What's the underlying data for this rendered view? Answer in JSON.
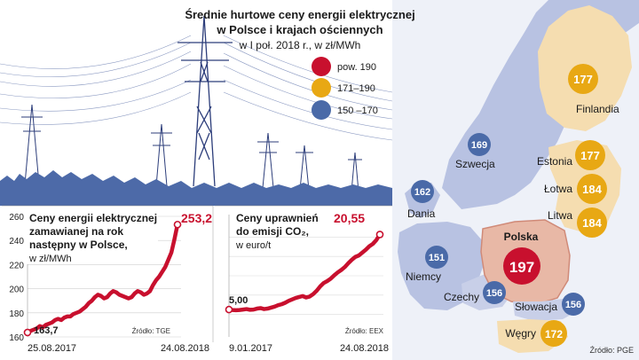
{
  "header": {
    "title_line1": "Średnie hurtowe ceny energii elektrycznej",
    "title_line2": "w Polsce i krajach ościennych",
    "subtitle": "w I poł. 2018 r., w zł/MWh"
  },
  "legend": [
    {
      "label": "pow. 190",
      "color": "#c8102e"
    },
    {
      "label": "171–190",
      "color": "#e8a814"
    },
    {
      "label": "150 –170",
      "color": "#4a6aa8"
    }
  ],
  "chart_data": [
    {
      "type": "map",
      "title": "Średnie hurtowe ceny energii elektrycznej w Polsce i krajach ościennych",
      "subtitle": "w I poł. 2018 r., w zł/MWh",
      "unit": "zł/MWh",
      "countries": [
        {
          "name": "Polska",
          "value": 197,
          "band": "pow. 190"
        },
        {
          "name": "Finlandia",
          "value": 177,
          "band": "171–190"
        },
        {
          "name": "Estonia",
          "value": 177,
          "band": "171–190"
        },
        {
          "name": "Łotwa",
          "value": 184,
          "band": "171–190"
        },
        {
          "name": "Litwa",
          "value": 184,
          "band": "171–190"
        },
        {
          "name": "Węgry",
          "value": 172,
          "band": "171–190"
        },
        {
          "name": "Szwecja",
          "value": 169,
          "band": "150 –170"
        },
        {
          "name": "Dania",
          "value": 162,
          "band": "150 –170"
        },
        {
          "name": "Niemcy",
          "value": 151,
          "band": "150 –170"
        },
        {
          "name": "Czechy",
          "value": 156,
          "band": "150 –170"
        },
        {
          "name": "Słowacja",
          "value": 156,
          "band": "150 –170"
        }
      ],
      "source": "Źródło: PGE"
    },
    {
      "type": "line",
      "title_lines": [
        "Ceny energii elektrycznej",
        "zamawianej na rok",
        "następny w Polsce,"
      ],
      "unit": "w zł/MWh",
      "x_start_label": "25.08.2017",
      "x_end_label": "24.08.2018",
      "ylim": [
        160,
        260
      ],
      "yticks": [
        160,
        180,
        200,
        220,
        240,
        260
      ],
      "start_value": 163.7,
      "end_value": 253.2,
      "start_label": "163,7",
      "end_label": "253,2",
      "values": [
        163.7,
        165,
        166,
        167,
        169,
        168,
        170,
        171,
        172,
        174,
        175,
        174,
        176,
        177,
        177,
        179,
        180,
        181,
        183,
        185,
        188,
        190,
        193,
        195,
        194,
        192,
        193,
        196,
        198,
        197,
        195,
        194,
        193,
        192,
        193,
        196,
        198,
        197,
        195,
        196,
        198,
        203,
        207,
        210,
        214,
        218,
        224,
        230,
        241,
        253.2
      ],
      "source": "Źródło: TGE"
    },
    {
      "type": "line",
      "title_lines": [
        "Ceny uprawnień",
        "do emisji CO₂,"
      ],
      "unit": "w euro/t",
      "x_start_label": "9.01.2017",
      "x_end_label": "24.08.2018",
      "start_value": 5.0,
      "end_value": 20.55,
      "start_label": "5,00",
      "end_label": "20,55",
      "values": [
        5.0,
        4.9,
        4.85,
        4.9,
        5.0,
        5.1,
        4.95,
        5.0,
        5.2,
        5.3,
        5.1,
        5.2,
        5.4,
        5.6,
        5.9,
        6.1,
        6.4,
        6.8,
        7.1,
        7.4,
        7.6,
        7.8,
        7.5,
        7.7,
        8.2,
        8.9,
        9.8,
        10.5,
        10.9,
        11.4,
        12.1,
        12.7,
        13.2,
        13.8,
        14.6,
        15.3,
        15.9,
        16.2,
        16.8,
        17.4,
        18.1,
        18.6,
        19.4,
        20.55
      ],
      "source": "Źródło: EEX"
    }
  ]
}
